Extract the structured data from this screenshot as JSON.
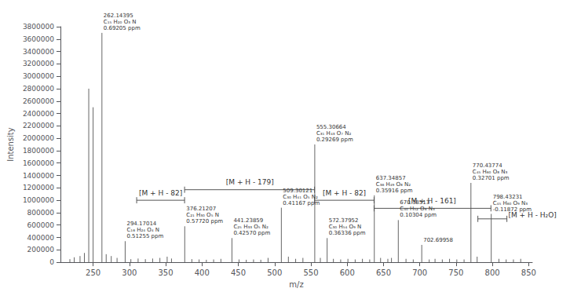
{
  "chart_data": {
    "type": "stem",
    "xlabel": "m/z",
    "ylabel": "Intensity",
    "xlim": [
      205,
      855
    ],
    "ylim": [
      0,
      3800000
    ],
    "xticks": [
      250,
      300,
      350,
      400,
      450,
      500,
      550,
      600,
      650,
      700,
      750,
      800,
      850
    ],
    "yticks": [
      0,
      200000,
      400000,
      600000,
      800000,
      1000000,
      1200000,
      1400000,
      1600000,
      1800000,
      2000000,
      2200000,
      2400000,
      2600000,
      2800000,
      3000000,
      3200000,
      3400000,
      3600000
    ],
    "grid": false,
    "color": "#555555",
    "x": [
      218,
      224,
      232,
      238,
      244,
      250,
      262.14395,
      268,
      275,
      283,
      294.17014,
      302,
      312,
      322,
      332,
      342,
      352,
      358,
      376.21207,
      386,
      396,
      406,
      416,
      426,
      441.23859,
      451,
      461,
      471,
      481,
      491,
      509.30121,
      519,
      529,
      539,
      555.30664,
      563,
      572.37952,
      581,
      591,
      601,
      611,
      621,
      631,
      637.34857,
      646,
      656,
      661,
      670.38513,
      681,
      691,
      702.69958,
      713,
      721,
      731,
      741,
      751,
      761,
      770.43774,
      779,
      798.43231,
      809,
      819,
      829,
      839
    ],
    "values": [
      50000,
      80000,
      100000,
      150000,
      2800000,
      2500000,
      3700000,
      130000,
      100000,
      70000,
      340000,
      50000,
      60000,
      50000,
      60000,
      70000,
      90000,
      60000,
      580000,
      50000,
      45000,
      40000,
      45000,
      55000,
      390000,
      45000,
      40000,
      45000,
      40000,
      70000,
      880000,
      90000,
      55000,
      70000,
      1900000,
      70000,
      390000,
      55000,
      45000,
      55000,
      45000,
      55000,
      45000,
      1080000,
      70000,
      55000,
      70000,
      680000,
      55000,
      45000,
      280000,
      45000,
      55000,
      45000,
      55000,
      45000,
      45000,
      1280000,
      90000,
      780000,
      55000,
      45000,
      45000,
      55000
    ],
    "annotations": [
      {
        "x": 262.14395,
        "y": 3700000,
        "text": "262.14395\nC₁₅ H₂₀ O₃ N\n0.69205 ppm"
      },
      {
        "x": 294.17014,
        "y": 340000,
        "text": "294.17014\nC₁₆ H₂₄ O₄ N\n0.51255 ppm"
      },
      {
        "x": 376.21207,
        "y": 580000,
        "text": "376.21207\nC₂₁ H₃₀ O₅ N\n0.57720 ppm"
      },
      {
        "x": 441.23859,
        "y": 390000,
        "text": "441.23859\nC₂₅ H₃₃ O₅ N₂\n0.42570 ppm"
      },
      {
        "x": 509.30121,
        "y": 880000,
        "text": "509.30121\nC₃₀ H₄₁ O₅ N₂\n0.41167 ppm"
      },
      {
        "x": 555.30664,
        "y": 1900000,
        "text": "555.30664\nC₃₁ H₄₃ O₇ N₂\n0.29269 ppm"
      },
      {
        "x": 572.37952,
        "y": 390000,
        "text": "572.37952\nC₃₀ H₅₄ O₉ N\n0.36336 ppm"
      },
      {
        "x": 637.34857,
        "y": 1080000,
        "text": "637.34857\nC₃₆ H₄₉ O₈ N₂\n0.35916 ppm"
      },
      {
        "x": 670.38513,
        "y": 680000,
        "text": "670.38513\nC₄₀ H₅₂ O₆ N₃\n0.10304 ppm"
      },
      {
        "x": 702.69958,
        "y": 280000,
        "text": "702.69958"
      },
      {
        "x": 770.43774,
        "y": 1280000,
        "text": "770.43774\nC₄₅ H₆₀ O₈ N₃\n0.32701 ppm"
      },
      {
        "x": 798.43231,
        "y": 780000,
        "text": "798.43231\nC₄₅ H₆₀ O₉ N₃\n-0.11872 ppm"
      }
    ],
    "brackets": [
      {
        "label": "[M + H - 82]",
        "x1": 310,
        "x2": 376,
        "y": 1000000,
        "y_tick_lo": 950000,
        "y_tick_hi": 1050000,
        "label_x": 343,
        "label_y": 1060000
      },
      {
        "label": "[M + H - 179]",
        "x1": 376,
        "x2": 555,
        "y": 1170000,
        "y_tick_lo": 1120000,
        "y_tick_hi": 1220000,
        "label_x": 466,
        "label_y": 1230000
      },
      {
        "label": "[M + H - 82]",
        "x1": 555,
        "x2": 637,
        "y": 1000000,
        "y_tick_lo": 950000,
        "y_tick_hi": 1050000,
        "label_x": 596,
        "label_y": 1060000
      },
      {
        "label": "[M + H - 161]",
        "x1": 637,
        "x2": 798,
        "y": 870000,
        "y_tick_lo": 820000,
        "y_tick_hi": 920000,
        "label_x": 717,
        "label_y": 930000
      },
      {
        "label": "[M + H - H₂O]",
        "x1": 780,
        "x2": 820,
        "y": 700000,
        "y_tick_lo": 650000,
        "y_tick_hi": 750000,
        "label_x": 822,
        "label_y": 710000
      }
    ]
  }
}
